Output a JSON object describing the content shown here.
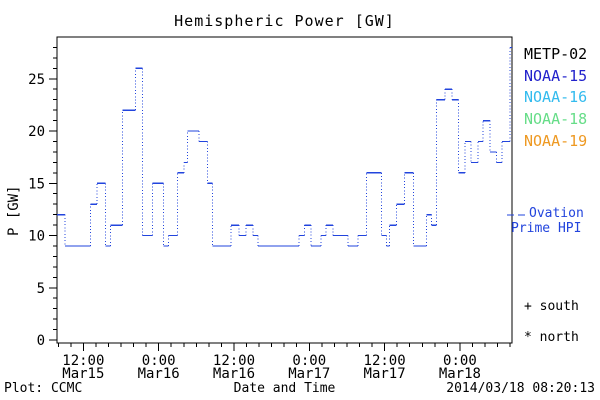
{
  "title": "Hemispheric Power [GW]",
  "y_axis_label": "P [GW]",
  "footer": {
    "plot_credit": "Plot: CCMC",
    "x_axis_label": "Date and Time",
    "timestamp": "2014/03/18 08:20:13"
  },
  "legend": {
    "satellites": [
      {
        "label": "METP-02",
        "color": "#000000"
      },
      {
        "label": "NOAA-15",
        "color": "#2222cc"
      },
      {
        "label": "NOAA-16",
        "color": "#33bbee"
      },
      {
        "label": "NOAA-18",
        "color": "#66dd88"
      },
      {
        "label": "NOAA-19",
        "color": "#ee9922"
      }
    ],
    "line_series": {
      "line1": "Ovation",
      "line2": "Prime HPI",
      "sample_style": "dashed",
      "color": "#2244dd"
    },
    "markers": [
      {
        "symbol": "+",
        "label": "south"
      },
      {
        "symbol": "*",
        "label": "north"
      }
    ]
  },
  "chart_data": {
    "type": "line",
    "line_style": "step-post; solid horizontals, dotted verticals",
    "title": "Hemispheric Power [GW]",
    "xlabel": "Date and Time",
    "ylabel": "P [GW]",
    "ylim": [
      0,
      29
    ],
    "y_major_ticks": [
      0,
      5,
      10,
      15,
      20,
      25
    ],
    "y_minor_step": 1,
    "grid": "off",
    "x_unit": "hours after 2014-03-15 00:00 UT",
    "x_range_hours": [
      7.8,
      80.3
    ],
    "x_minor_step_hours": 2,
    "x_major_ticks": [
      {
        "hours": 12,
        "time": "12:00",
        "date": "Mar15"
      },
      {
        "hours": 24,
        "time": "0:00",
        "date": "Mar16"
      },
      {
        "hours": 36,
        "time": "12:00",
        "date": "Mar16"
      },
      {
        "hours": 48,
        "time": "0:00",
        "date": "Mar17"
      },
      {
        "hours": 60,
        "time": "12:00",
        "date": "Mar17"
      },
      {
        "hours": 72,
        "time": "0:00",
        "date": "Mar18"
      }
    ],
    "series": [
      {
        "name": "Ovation Prime HPI",
        "color": "#2244dd",
        "steps_format": [
          "start_hour",
          "power_GW"
        ],
        "end_hour": 80.3,
        "steps": [
          [
            7.8,
            12
          ],
          [
            9.1,
            9
          ],
          [
            13.1,
            13
          ],
          [
            14.2,
            15
          ],
          [
            15.5,
            9
          ],
          [
            16.3,
            11
          ],
          [
            18.2,
            22
          ],
          [
            20.3,
            26
          ],
          [
            21.4,
            10
          ],
          [
            23.0,
            15
          ],
          [
            24.8,
            9
          ],
          [
            25.6,
            10
          ],
          [
            27.0,
            16
          ],
          [
            28.0,
            17
          ],
          [
            28.6,
            20
          ],
          [
            30.4,
            19
          ],
          [
            31.8,
            15
          ],
          [
            32.6,
            9
          ],
          [
            35.5,
            11
          ],
          [
            36.8,
            10
          ],
          [
            37.9,
            11
          ],
          [
            39.0,
            10
          ],
          [
            39.8,
            9
          ],
          [
            46.4,
            10
          ],
          [
            47.2,
            11
          ],
          [
            48.3,
            9
          ],
          [
            49.9,
            10
          ],
          [
            50.7,
            11
          ],
          [
            51.8,
            10
          ],
          [
            54.2,
            9
          ],
          [
            55.8,
            10
          ],
          [
            57.1,
            16
          ],
          [
            59.5,
            10
          ],
          [
            60.3,
            9
          ],
          [
            60.8,
            11
          ],
          [
            61.9,
            13
          ],
          [
            63.2,
            16
          ],
          [
            64.6,
            9
          ],
          [
            66.7,
            12
          ],
          [
            67.5,
            11
          ],
          [
            68.3,
            23
          ],
          [
            69.6,
            24
          ],
          [
            70.7,
            23
          ],
          [
            71.8,
            16
          ],
          [
            72.8,
            19
          ],
          [
            73.8,
            17
          ],
          [
            74.9,
            19
          ],
          [
            75.7,
            21
          ],
          [
            76.8,
            18
          ],
          [
            77.8,
            17
          ],
          [
            78.7,
            19
          ],
          [
            80.0,
            28
          ]
        ]
      }
    ]
  }
}
